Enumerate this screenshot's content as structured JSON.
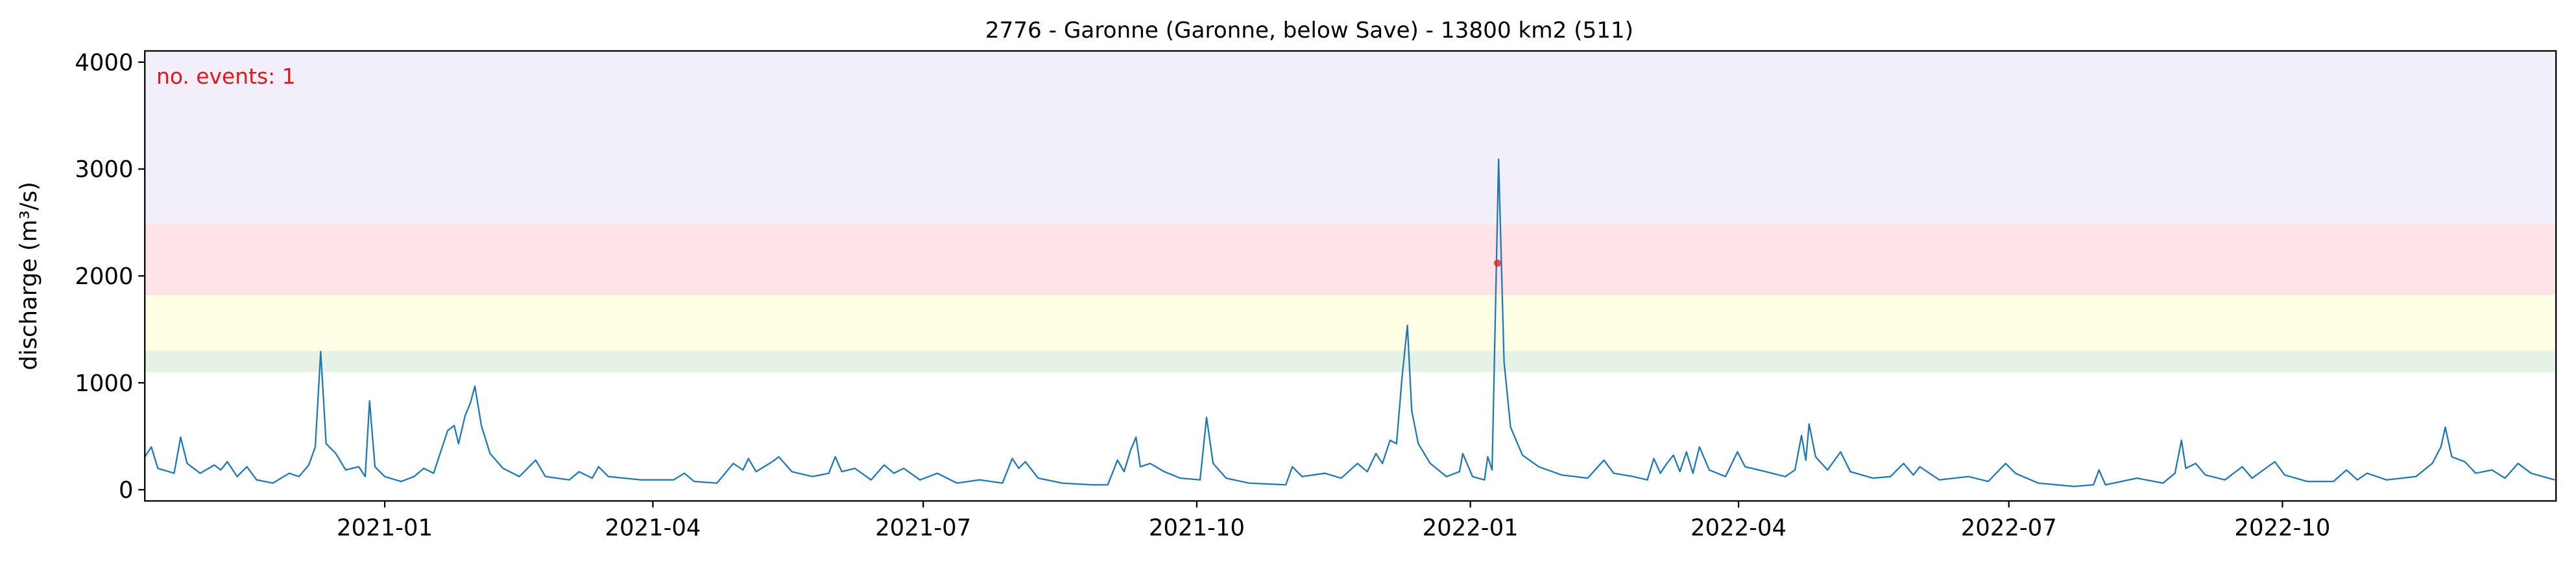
{
  "chart_data": {
    "type": "line",
    "title": "2776 - Garonne (Garonne, below Save) - 13800 km2 (511)",
    "ylabel": "discharge (m³/s)",
    "annotation": "no. events: 1",
    "xlim": [
      2020.779,
      2023.0
    ],
    "ylim": [
      -105,
      4105
    ],
    "xticks": [
      {
        "value": 2021.0,
        "label": "2021-01"
      },
      {
        "value": 2021.247,
        "label": "2021-04"
      },
      {
        "value": 2021.496,
        "label": "2021-07"
      },
      {
        "value": 2021.748,
        "label": "2021-10"
      },
      {
        "value": 2022.0,
        "label": "2022-01"
      },
      {
        "value": 2022.247,
        "label": "2022-04"
      },
      {
        "value": 2022.496,
        "label": "2022-07"
      },
      {
        "value": 2022.748,
        "label": "2022-10"
      }
    ],
    "yticks": [
      0,
      1000,
      2000,
      3000,
      4000
    ],
    "bands": [
      {
        "from": 1100,
        "to": 1300,
        "color": "#e6f2e6"
      },
      {
        "from": 1300,
        "to": 1820,
        "color": "#ffffe6"
      },
      {
        "from": 1820,
        "to": 2480,
        "color": "#ffe3e6"
      },
      {
        "from": 2480,
        "to": 4105,
        "color": "#f2eefa"
      }
    ],
    "series": [
      {
        "color": "#1f77b4",
        "x": [
          2020.779,
          2020.785,
          2020.791,
          2020.806,
          2020.812,
          2020.818,
          2020.83,
          2020.843,
          2020.849,
          2020.855,
          2020.864,
          2020.873,
          2020.882,
          2020.897,
          2020.912,
          2020.921,
          2020.93,
          2020.936,
          2020.941,
          2020.946,
          2020.955,
          2020.964,
          2020.976,
          2020.982,
          2020.986,
          2020.991,
          2021.0,
          2021.015,
          2021.027,
          2021.036,
          2021.045,
          2021.058,
          2021.064,
          2021.068,
          2021.074,
          2021.079,
          2021.083,
          2021.089,
          2021.097,
          2021.109,
          2021.124,
          2021.139,
          2021.148,
          2021.17,
          2021.179,
          2021.191,
          2021.197,
          2021.206,
          2021.236,
          2021.266,
          2021.276,
          2021.285,
          2021.306,
          2021.321,
          2021.33,
          2021.335,
          2021.342,
          2021.357,
          2021.363,
          2021.375,
          2021.394,
          2021.409,
          2021.415,
          2021.421,
          2021.433,
          2021.448,
          2021.46,
          2021.469,
          2021.478,
          2021.493,
          2021.509,
          2021.527,
          2021.548,
          2021.569,
          2021.578,
          2021.584,
          2021.59,
          2021.602,
          2021.624,
          2021.651,
          2021.666,
          2021.675,
          2021.681,
          2021.687,
          2021.692,
          2021.696,
          2021.705,
          2021.718,
          2021.733,
          2021.751,
          2021.757,
          2021.763,
          2021.775,
          2021.796,
          2021.83,
          2021.836,
          2021.845,
          2021.866,
          2021.881,
          2021.896,
          2021.905,
          2021.913,
          2021.919,
          2021.926,
          2021.932,
          2021.937,
          2021.942,
          2021.946,
          2021.952,
          2021.963,
          2021.978,
          2021.99,
          2021.993,
          2022.002,
          2022.013,
          2022.016,
          2022.02,
          2022.026,
          2022.031,
          2022.037,
          2022.048,
          2022.063,
          2022.084,
          2022.108,
          2022.123,
          2022.132,
          2022.15,
          2022.163,
          2022.169,
          2022.175,
          2022.181,
          2022.187,
          2022.193,
          2022.199,
          2022.205,
          2022.211,
          2022.22,
          2022.235,
          2022.246,
          2022.253,
          2022.272,
          2022.29,
          2022.299,
          2022.305,
          2022.309,
          2022.312,
          2022.318,
          2022.329,
          2022.341,
          2022.35,
          2022.371,
          2022.387,
          2022.399,
          2022.408,
          2022.414,
          2022.432,
          2022.459,
          2022.477,
          2022.493,
          2022.502,
          2022.523,
          2022.556,
          2022.574,
          2022.579,
          2022.585,
          2022.614,
          2022.638,
          2022.649,
          2022.655,
          2022.659,
          2022.668,
          2022.677,
          2022.695,
          2022.711,
          2022.72,
          2022.741,
          2022.75,
          2022.771,
          2022.795,
          2022.807,
          2022.817,
          2022.826,
          2022.844,
          2022.871,
          2022.886,
          2022.894,
          2022.898,
          2022.904,
          2022.916,
          2022.926,
          2022.941,
          2022.953,
          2022.965,
          2022.977,
          2022.999
        ],
        "values": [
          308,
          400,
          200,
          154,
          492,
          246,
          154,
          231,
          185,
          262,
          123,
          215,
          92,
          62,
          154,
          123,
          231,
          400,
          1292,
          431,
          338,
          185,
          215,
          123,
          831,
          215,
          123,
          77,
          123,
          200,
          154,
          554,
          600,
          431,
          692,
          815,
          969,
          600,
          338,
          200,
          123,
          277,
          123,
          92,
          169,
          108,
          215,
          123,
          92,
          92,
          154,
          77,
          62,
          246,
          185,
          292,
          169,
          262,
          308,
          169,
          123,
          154,
          308,
          169,
          200,
          92,
          231,
          154,
          200,
          92,
          154,
          62,
          92,
          62,
          292,
          200,
          262,
          108,
          62,
          46,
          46,
          277,
          169,
          369,
          492,
          215,
          246,
          169,
          108,
          92,
          677,
          246,
          108,
          62,
          46,
          215,
          123,
          154,
          108,
          246,
          169,
          338,
          246,
          462,
          431,
          1046,
          1538,
          738,
          431,
          246,
          123,
          169,
          338,
          123,
          92,
          308,
          185,
          3092,
          1200,
          585,
          323,
          215,
          138,
          108,
          277,
          154,
          123,
          92,
          292,
          154,
          246,
          323,
          169,
          354,
          154,
          400,
          185,
          123,
          354,
          215,
          169,
          123,
          185,
          508,
          277,
          615,
          308,
          185,
          354,
          169,
          108,
          123,
          246,
          138,
          215,
          92,
          123,
          77,
          246,
          154,
          62,
          31,
          46,
          185,
          46,
          108,
          62,
          154,
          462,
          200,
          246,
          138,
          92,
          215,
          108,
          262,
          138,
          77,
          77,
          185,
          92,
          154,
          92,
          123,
          246,
          400,
          585,
          308,
          262,
          154,
          185,
          108,
          246,
          154,
          92
        ]
      }
    ],
    "events": {
      "color": "#d62728",
      "x": [
        2022.025
      ],
      "values": [
        2120
      ]
    }
  }
}
